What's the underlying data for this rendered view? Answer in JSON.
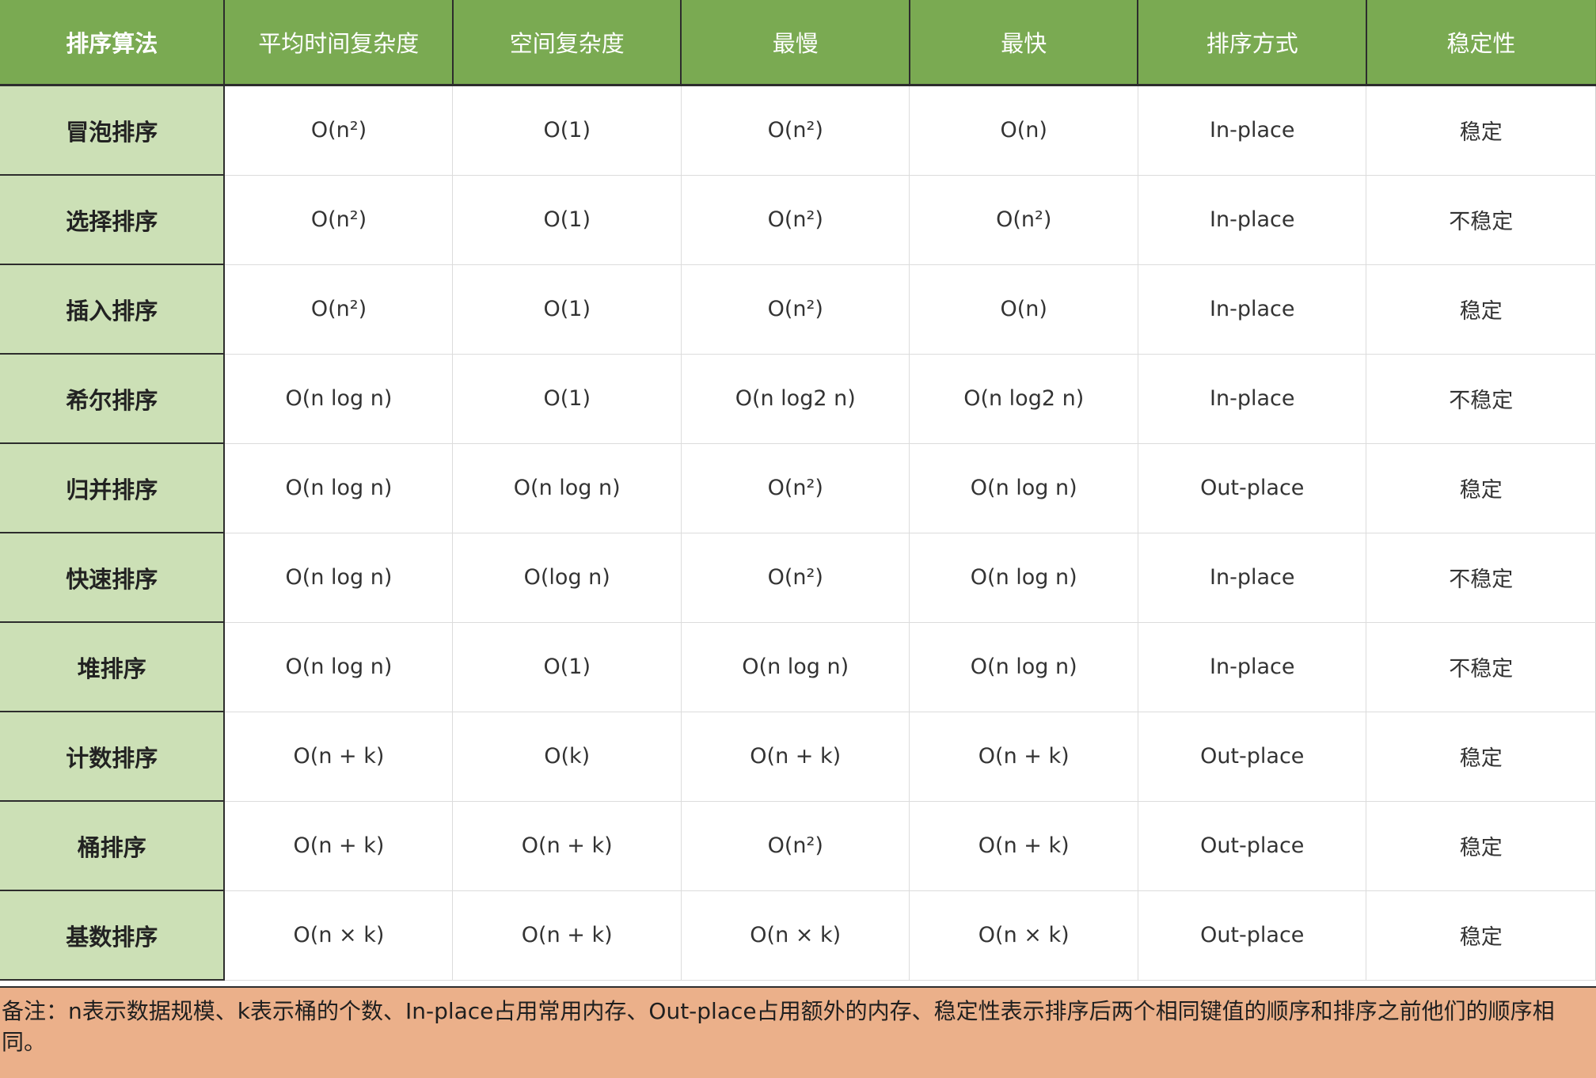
{
  "table": {
    "headers": [
      "排序算法",
      "平均时间复杂度",
      "空间复杂度",
      "最慢",
      "最快",
      "排序方式",
      "稳定性"
    ],
    "rows": [
      {
        "name": "冒泡排序",
        "cells": [
          "O(n²)",
          "O(1)",
          "O(n²)",
          "O(n)",
          "In-place",
          "稳定"
        ]
      },
      {
        "name": "选择排序",
        "cells": [
          "O(n²)",
          "O(1)",
          "O(n²)",
          "O(n²)",
          "In-place",
          "不稳定"
        ]
      },
      {
        "name": "插入排序",
        "cells": [
          "O(n²)",
          "O(1)",
          "O(n²)",
          "O(n)",
          "In-place",
          "稳定"
        ]
      },
      {
        "name": "希尔排序",
        "cells": [
          "O(n log n)",
          "O(1)",
          "O(n log2 n)",
          "O(n log2 n)",
          "In-place",
          "不稳定"
        ]
      },
      {
        "name": "归并排序",
        "cells": [
          "O(n log n)",
          "O(n log n)",
          "O(n²)",
          "O(n log n)",
          "Out-place",
          "稳定"
        ]
      },
      {
        "name": "快速排序",
        "cells": [
          "O(n log n)",
          "O(log n)",
          "O(n²)",
          "O(n log n)",
          "In-place",
          "不稳定"
        ]
      },
      {
        "name": "堆排序",
        "cells": [
          "O(n log n)",
          "O(1)",
          "O(n log n)",
          "O(n log n)",
          "In-place",
          "不稳定"
        ]
      },
      {
        "name": "计数排序",
        "cells": [
          "O(n + k)",
          "O(k)",
          "O(n + k)",
          "O(n + k)",
          "Out-place",
          "稳定"
        ]
      },
      {
        "name": "桶排序",
        "cells": [
          "O(n + k)",
          "O(n + k)",
          "O(n²)",
          "O(n + k)",
          "Out-place",
          "稳定"
        ]
      },
      {
        "name": "基数排序",
        "cells": [
          "O(n × k)",
          "O(n + k)",
          "O(n × k)",
          "O(n × k)",
          "Out-place",
          "稳定"
        ]
      }
    ]
  },
  "note": "备注：n表示数据规模、k表示桶的个数、In-place占用常用内存、Out-place占用额外的内存、稳定性表示排序后两个相同键值的顺序和排序之前他们的顺序相同。",
  "colors": {
    "header_bg": "#7aaa52",
    "name_col_bg": "#cce0b6",
    "note_bg": "#ebb08a"
  }
}
